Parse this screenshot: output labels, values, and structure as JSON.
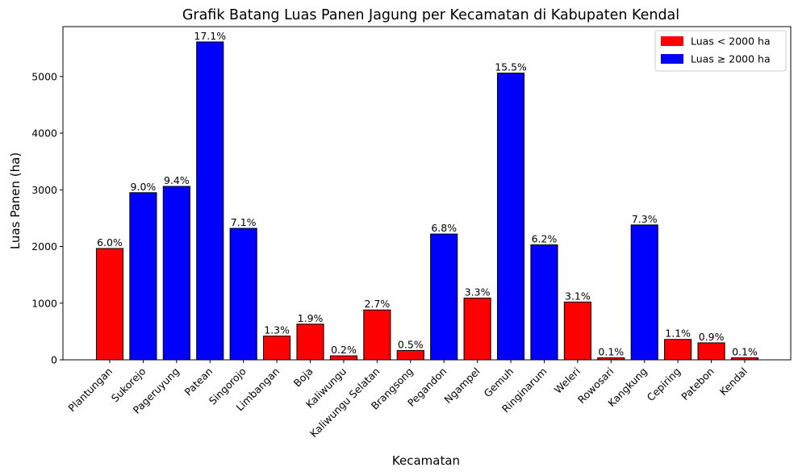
{
  "chart_data": {
    "type": "bar",
    "title": "Grafik Batang Luas Panen Jagung per Kecamatan di Kabupaten Kendal",
    "xlabel": "Kecamatan",
    "ylabel": "Luas Panen (ha)",
    "ylim": [
      0,
      5880
    ],
    "yticks": [
      0,
      1000,
      2000,
      3000,
      4000,
      5000
    ],
    "threshold": 2000,
    "colors": {
      "below": "#ff0000",
      "above": "#0000ff",
      "edge": "#000000"
    },
    "legend": {
      "position": "top-right",
      "entries": [
        {
          "label": "Luas < 2000 ha",
          "color": "#ff0000"
        },
        {
          "label": "Luas ≥ 2000 ha",
          "color": "#0000ff"
        }
      ]
    },
    "categories": [
      "Plantungan",
      "Sukorejo",
      "Pageruyung",
      "Patean",
      "Singorojo",
      "Limbangan",
      "Boja",
      "Kaliwungu",
      "Kaliwungu Selatan",
      "Brangsong",
      "Pegandon",
      "Ngampel",
      "Gemuh",
      "Ringinarum",
      "Weleri",
      "Rowosari",
      "Kangkung",
      "Cepiring",
      "Patebon",
      "Kendal"
    ],
    "values": [
      1965,
      2950,
      3060,
      5610,
      2320,
      420,
      630,
      70,
      880,
      165,
      2220,
      1090,
      5060,
      2030,
      1020,
      35,
      2380,
      360,
      300,
      35
    ],
    "labels": [
      "6.0%",
      "9.0%",
      "9.4%",
      "17.1%",
      "7.1%",
      "1.3%",
      "1.9%",
      "0.2%",
      "2.7%",
      "0.5%",
      "6.8%",
      "3.3%",
      "15.5%",
      "6.2%",
      "3.1%",
      "0.1%",
      "7.3%",
      "1.1%",
      "0.9%",
      "0.1%"
    ]
  }
}
